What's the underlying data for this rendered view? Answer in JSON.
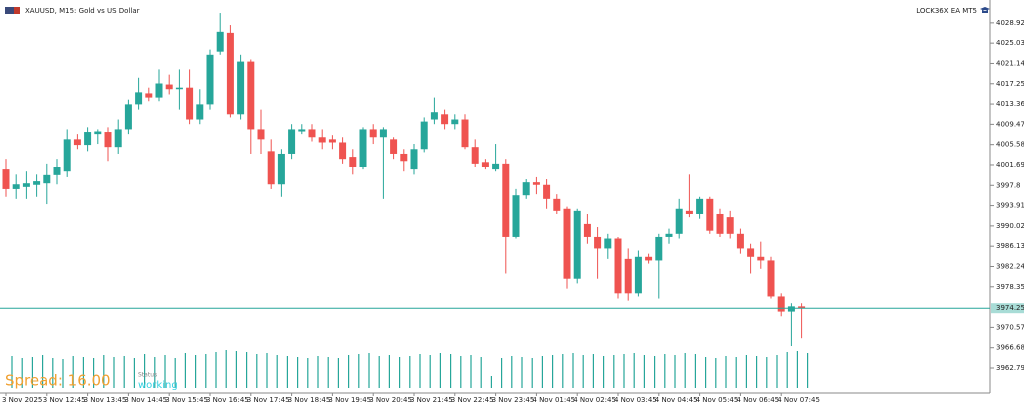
{
  "chart_data": {
    "type": "candlestick",
    "title": "XAUUSD, M15:  Gold vs US Dollar",
    "expert_label": "LOCK36X EA MT5",
    "up_color": "#26a69a",
    "down_color": "#ef5350",
    "categories": [
      "3 Nov 2025",
      null,
      null,
      null,
      "3 Nov 12:45",
      null,
      null,
      null,
      "3 Nov 13:45",
      null,
      null,
      null,
      "3 Nov 14:45",
      null,
      null,
      null,
      "3 Nov 15:45",
      null,
      null,
      null,
      "3 Nov 16:45",
      null,
      null,
      null,
      "3 Nov 17:45",
      null,
      null,
      null,
      "3 Nov 18:45",
      null,
      null,
      null,
      "3 Nov 19:45",
      null,
      null,
      null,
      "3 Nov 20:45",
      null,
      null,
      null,
      "3 Nov 21:45",
      null,
      null,
      null,
      "3 Nov 22:45",
      null,
      null,
      null,
      "3 Nov 23:45",
      null,
      null,
      null,
      "4 Nov 01:45",
      null,
      null,
      null,
      "4 Nov 02:45",
      null,
      null,
      null,
      "4 Nov 03:45",
      null,
      null,
      null,
      "4 Nov 04:45",
      null,
      null,
      null,
      "4 Nov 05:45",
      null,
      null,
      null,
      "4 Nov 06:45",
      null,
      null,
      null,
      "4 Nov 07:45",
      null,
      null
    ],
    "open": [
      4000.9,
      3997.1,
      3997.5,
      3997.9,
      3998.2,
      3999.8,
      4000.5,
      4006.6,
      4005.5,
      4007.6,
      4008.0,
      4005.1,
      4008.5,
      4013.3,
      4015.4,
      4014.6,
      4017.1,
      4016.2,
      4016.5,
      4010.4,
      4013.3,
      4023.4,
      4027.0,
      4011.4,
      4021.5,
      4008.5,
      4004.3,
      3998.0,
      4003.8,
      4008.1,
      4008.5,
      4007.0,
      4006.6,
      4006.0,
      4003.2,
      4001.3,
      4008.5,
      4007.0,
      4006.6,
      4003.8,
      4000.9,
      4004.7,
      4010.4,
      4011.4,
      4009.5,
      4010.4,
      4005.1,
      4002.2,
      4000.9,
      4001.9,
      3987.9,
      3995.9,
      3998.4,
      3997.9,
      3995.2,
      3993.3,
      3979.9,
      3990.4,
      3987.9,
      3985.7,
      3987.6,
      3983.7,
      3977.1,
      3984.1,
      3983.4,
      3987.9,
      3988.5,
      3992.9,
      3992.3,
      3995.2,
      3992.3,
      3991.7,
      3988.5,
      3985.7,
      3984.1,
      3983.4,
      3976.5,
      3973.6,
      3974.6
    ],
    "high": [
      4002.8,
      3999.9,
      4000.5,
      3999.9,
      4001.9,
      4002.8,
      4008.5,
      4007.6,
      4008.9,
      4008.5,
      4008.9,
      4010.4,
      4014.2,
      4018.4,
      4016.5,
      4020.0,
      4019.0,
      4020.0,
      4020.0,
      4016.2,
      4023.8,
      4030.8,
      4028.5,
      4022.8,
      4021.9,
      4012.3,
      4006.6,
      4004.7,
      4009.5,
      4009.5,
      4009.5,
      4008.5,
      4007.4,
      4007.0,
      4004.7,
      4008.9,
      4009.5,
      4008.9,
      4007.0,
      4004.7,
      4005.7,
      4010.8,
      4014.6,
      4012.3,
      4011.4,
      4011.4,
      4006.6,
      4002.8,
      4005.7,
      4002.8,
      3997.1,
      3999.0,
      3999.4,
      3999.0,
      3996.1,
      3993.7,
      3993.3,
      3992.3,
      3989.8,
      3988.5,
      3987.9,
      3985.7,
      3985.3,
      3984.7,
      3988.5,
      3989.5,
      3995.2,
      3999.9,
      3995.6,
      3995.6,
      3993.3,
      3992.9,
      3989.5,
      3986.6,
      3987.0,
      3984.1,
      3977.1,
      3975.2,
      3975.2
    ],
    "low": [
      3995.6,
      3995.2,
      3995.2,
      3995.6,
      3994.2,
      3998.0,
      3999.4,
      4004.7,
      4004.3,
      4005.7,
      4002.4,
      4003.8,
      4007.6,
      4012.3,
      4013.9,
      4013.9,
      4015.2,
      4012.3,
      4009.5,
      4009.5,
      4012.3,
      4022.8,
      4010.8,
      4010.4,
      4003.8,
      4003.8,
      3997.1,
      3995.6,
      4002.8,
      4007.6,
      4006.2,
      4004.7,
      4004.7,
      4001.9,
      3999.9,
      4000.9,
      4005.7,
      3995.2,
      4002.8,
      4000.5,
      3999.9,
      4004.1,
      4009.5,
      4008.5,
      4008.5,
      4004.7,
      4001.3,
      4000.9,
      4000.5,
      3980.9,
      3987.6,
      3995.2,
      3996.1,
      3993.3,
      3992.3,
      3978.0,
      3979.0,
      3986.6,
      3979.9,
      3983.7,
      3976.1,
      3975.7,
      3976.5,
      3982.8,
      3976.1,
      3986.6,
      3987.6,
      3991.7,
      3991.4,
      3988.5,
      3987.9,
      3987.6,
      3984.7,
      3980.9,
      3981.8,
      3976.1,
      3972.7,
      3967.0,
      3968.5
    ],
    "close": [
      3997.1,
      3998.0,
      3998.2,
      3998.6,
      3999.8,
      4001.3,
      4006.6,
      4005.5,
      4008.0,
      4008.1,
      4005.1,
      4008.5,
      4013.3,
      4015.6,
      4014.6,
      4017.3,
      4016.2,
      4016.5,
      4010.4,
      4013.3,
      4022.8,
      4027.2,
      4011.4,
      4021.5,
      4008.5,
      4006.6,
      3998.0,
      4003.8,
      4008.5,
      4008.5,
      4007.0,
      4006.0,
      4006.0,
      4002.8,
      4001.3,
      4008.5,
      4007.0,
      4008.5,
      4003.8,
      4002.4,
      4004.7,
      4010.0,
      4011.8,
      4009.5,
      4010.4,
      4005.1,
      4001.9,
      4001.3,
      4001.9,
      3987.9,
      3995.9,
      3998.4,
      3997.9,
      3995.2,
      3992.9,
      3979.9,
      3992.9,
      3987.9,
      3985.7,
      3987.6,
      3977.1,
      3977.1,
      3984.1,
      3983.4,
      3987.9,
      3988.5,
      3993.3,
      3992.3,
      3995.2,
      3989.1,
      3988.5,
      3988.5,
      3985.7,
      3984.1,
      3983.4,
      3976.5,
      3973.6,
      3974.6,
      3974.2
    ],
    "volumes": [
      32,
      30,
      31,
      33,
      30,
      29,
      32,
      31,
      30,
      33,
      31,
      32,
      30,
      34,
      31,
      33,
      30,
      35,
      33,
      34,
      36,
      38,
      37,
      36,
      34,
      35,
      33,
      32,
      31,
      30,
      32,
      31,
      30,
      33,
      34,
      35,
      32,
      33,
      31,
      32,
      34,
      33,
      35,
      34,
      32,
      33,
      31,
      12,
      30,
      32,
      31,
      30,
      32,
      33,
      34,
      35,
      33,
      34,
      32,
      33,
      34,
      35,
      33,
      32,
      34,
      33,
      35,
      34,
      31,
      30,
      32,
      31,
      33,
      32,
      31,
      33,
      36,
      37,
      35
    ],
    "ylim": [
      3958.0,
      4033.3
    ],
    "yticks": [
      4028.92,
      4025.03,
      4021.14,
      4017.25,
      4013.36,
      4009.47,
      4005.58,
      4001.69,
      3997.8,
      3993.91,
      3990.02,
      3986.13,
      3982.24,
      3978.35,
      3970.57,
      3966.68,
      3962.79
    ],
    "current_price": 3974.25,
    "spread": "Spread: 16.00",
    "status_label": "Status",
    "status": "working"
  }
}
